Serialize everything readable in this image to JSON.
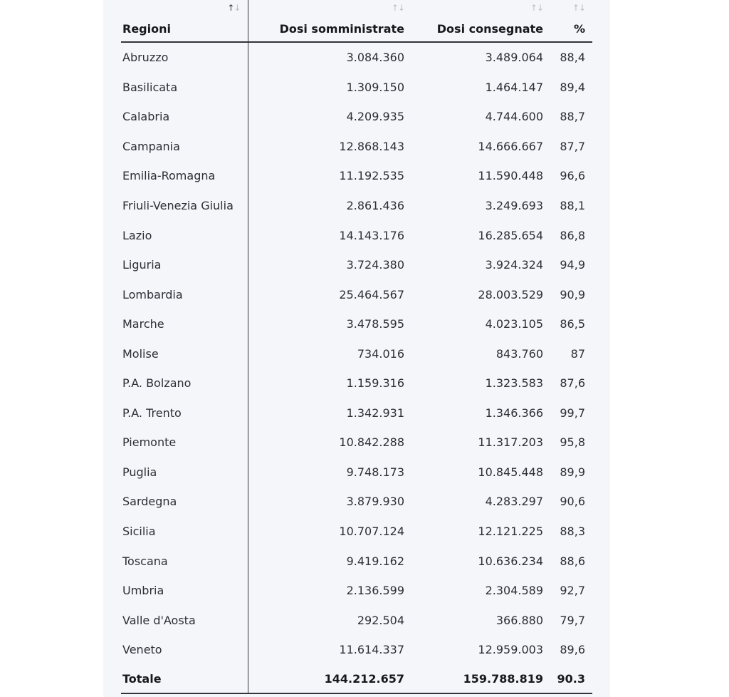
{
  "table": {
    "headers": [
      "Regioni",
      "Dosi somministrate",
      "Dosi consegnate",
      "%"
    ],
    "sort_icon": "↑↓",
    "rows": [
      [
        "Abruzzo",
        "3.084.360",
        "3.489.064",
        "88,4"
      ],
      [
        "Basilicata",
        "1.309.150",
        "1.464.147",
        "89,4"
      ],
      [
        "Calabria",
        "4.209.935",
        "4.744.600",
        "88,7"
      ],
      [
        "Campania",
        "12.868.143",
        "14.666.667",
        "87,7"
      ],
      [
        "Emilia-Romagna",
        "11.192.535",
        "11.590.448",
        "96,6"
      ],
      [
        "Friuli-Venezia Giulia",
        "2.861.436",
        "3.249.693",
        "88,1"
      ],
      [
        "Lazio",
        "14.143.176",
        "16.285.654",
        "86,8"
      ],
      [
        "Liguria",
        "3.724.380",
        "3.924.324",
        "94,9"
      ],
      [
        "Lombardia",
        "25.464.567",
        "28.003.529",
        "90,9"
      ],
      [
        "Marche",
        "3.478.595",
        "4.023.105",
        "86,5"
      ],
      [
        "Molise",
        "734.016",
        "843.760",
        "87"
      ],
      [
        "P.A. Bolzano",
        "1.159.316",
        "1.323.583",
        "87,6"
      ],
      [
        "P.A. Trento",
        "1.342.931",
        "1.346.366",
        "99,7"
      ],
      [
        "Piemonte",
        "10.842.288",
        "11.317.203",
        "95,8"
      ],
      [
        "Puglia",
        "9.748.173",
        "10.845.448",
        "89,9"
      ],
      [
        "Sardegna",
        "3.879.930",
        "4.283.297",
        "90,6"
      ],
      [
        "Sicilia",
        "10.707.124",
        "12.121.225",
        "88,3"
      ],
      [
        "Toscana",
        "9.419.162",
        "10.636.234",
        "88,6"
      ],
      [
        "Umbria",
        "2.136.599",
        "2.304.589",
        "92,7"
      ],
      [
        "Valle d'Aosta",
        "292.504",
        "366.880",
        "79,7"
      ],
      [
        "Veneto",
        "11.614.337",
        "12.959.003",
        "89,6"
      ]
    ],
    "total": [
      "Totale",
      "144.212.657",
      "159.788.819",
      "90.3"
    ]
  }
}
